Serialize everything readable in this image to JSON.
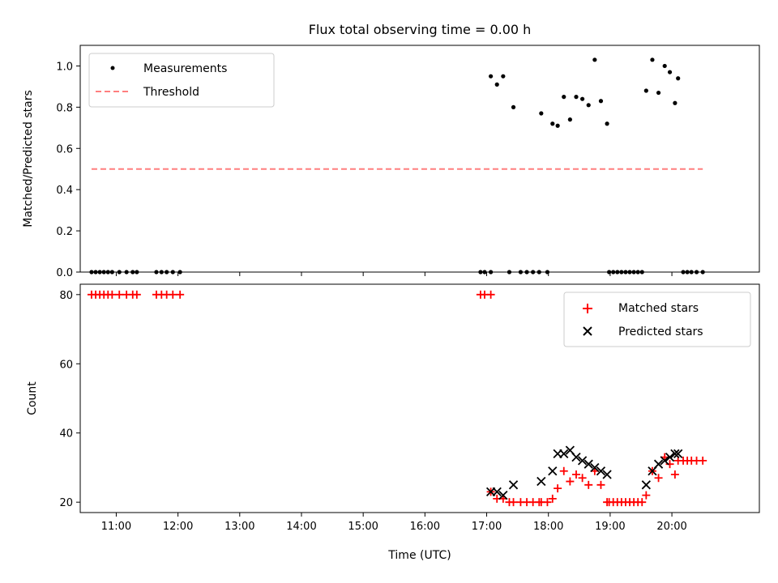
{
  "chart_data": [
    {
      "type": "scatter",
      "title": "Flux total observing time = 0.00 h",
      "xlabel": "",
      "ylabel": "Matched/Predicted stars",
      "xlim": [
        "10:25",
        "21:25"
      ],
      "ylim": [
        0,
        1.1
      ],
      "yticks": [
        0.0,
        0.2,
        0.4,
        0.6,
        0.8,
        1.0
      ],
      "ytick_labels": [
        "0.0",
        "0.2",
        "0.4",
        "0.6",
        "0.8",
        "1.0"
      ],
      "xticks": [
        "11:00",
        "12:00",
        "13:00",
        "14:00",
        "15:00",
        "16:00",
        "17:00",
        "18:00",
        "19:00",
        "20:00"
      ],
      "xtick_labels_shown": false,
      "legend_position": "upper left",
      "series": [
        {
          "name": "Measurements",
          "kind": "points",
          "color": "#000000",
          "points": [
            [
              "10:36",
              0
            ],
            [
              "10:40",
              0
            ],
            [
              "10:44",
              0
            ],
            [
              "10:48",
              0
            ],
            [
              "10:52",
              0
            ],
            [
              "10:56",
              0
            ],
            [
              "11:03",
              0
            ],
            [
              "11:10",
              0
            ],
            [
              "11:16",
              0
            ],
            [
              "11:20",
              0
            ],
            [
              "11:39",
              0
            ],
            [
              "11:44",
              0
            ],
            [
              "11:49",
              0
            ],
            [
              "11:55",
              0
            ],
            [
              "12:02",
              0
            ],
            [
              "16:54",
              0
            ],
            [
              "16:58",
              0
            ],
            [
              "17:04",
              0
            ],
            [
              "17:04",
              0.95
            ],
            [
              "17:10",
              0.91
            ],
            [
              "17:16",
              0.95
            ],
            [
              "17:26",
              0.8
            ],
            [
              "17:22",
              0
            ],
            [
              "17:33",
              0
            ],
            [
              "17:39",
              0
            ],
            [
              "17:45",
              0
            ],
            [
              "17:51",
              0
            ],
            [
              "17:59",
              0
            ],
            [
              "17:53",
              0.77
            ],
            [
              "18:04",
              0.72
            ],
            [
              "18:09",
              0.71
            ],
            [
              "18:15",
              0.85
            ],
            [
              "18:21",
              0.74
            ],
            [
              "18:27",
              0.85
            ],
            [
              "18:33",
              0.84
            ],
            [
              "18:39",
              0.81
            ],
            [
              "18:45",
              1.03
            ],
            [
              "18:51",
              0.83
            ],
            [
              "18:57",
              0.72
            ],
            [
              "18:59",
              0
            ],
            [
              "19:03",
              0
            ],
            [
              "19:07",
              0
            ],
            [
              "19:11",
              0
            ],
            [
              "19:15",
              0
            ],
            [
              "19:19",
              0
            ],
            [
              "19:23",
              0
            ],
            [
              "19:27",
              0
            ],
            [
              "19:31",
              0
            ],
            [
              "19:35",
              0.88
            ],
            [
              "19:41",
              1.03
            ],
            [
              "19:47",
              0.87
            ],
            [
              "19:53",
              1.0
            ],
            [
              "19:58",
              0.97
            ],
            [
              "20:03",
              0.82
            ],
            [
              "20:06",
              0.94
            ],
            [
              "20:11",
              0
            ],
            [
              "20:15",
              0
            ],
            [
              "20:19",
              0
            ],
            [
              "20:24",
              0
            ],
            [
              "20:30",
              0
            ]
          ]
        },
        {
          "name": "Threshold",
          "kind": "dashed-line",
          "color": "#ff7f7f",
          "points": [
            [
              "10:36",
              0.5
            ],
            [
              "20:30",
              0.5
            ]
          ]
        }
      ]
    },
    {
      "type": "scatter",
      "title": "",
      "xlabel": "Time (UTC)",
      "ylabel": "Count",
      "xlim": [
        "10:25",
        "21:25"
      ],
      "ylim": [
        17,
        83
      ],
      "yticks": [
        20,
        40,
        60,
        80
      ],
      "ytick_labels": [
        "20",
        "40",
        "60",
        "80"
      ],
      "xticks": [
        "11:00",
        "12:00",
        "13:00",
        "14:00",
        "15:00",
        "16:00",
        "17:00",
        "18:00",
        "19:00",
        "20:00"
      ],
      "xtick_labels": [
        "11:00",
        "12:00",
        "13:00",
        "14:00",
        "15:00",
        "16:00",
        "17:00",
        "18:00",
        "19:00",
        "20:00"
      ],
      "legend_position": "upper right",
      "series": [
        {
          "name": "Matched stars",
          "kind": "plus-markers",
          "color": "#ff0000",
          "points": [
            [
              "10:36",
              80
            ],
            [
              "10:40",
              80
            ],
            [
              "10:44",
              80
            ],
            [
              "10:48",
              80
            ],
            [
              "10:52",
              80
            ],
            [
              "10:56",
              80
            ],
            [
              "11:03",
              80
            ],
            [
              "11:10",
              80
            ],
            [
              "11:16",
              80
            ],
            [
              "11:20",
              80
            ],
            [
              "11:39",
              80
            ],
            [
              "11:44",
              80
            ],
            [
              "11:49",
              80
            ],
            [
              "11:55",
              80
            ],
            [
              "12:02",
              80
            ],
            [
              "16:54",
              80
            ],
            [
              "16:58",
              80
            ],
            [
              "17:04",
              80
            ],
            [
              "17:04",
              23
            ],
            [
              "17:10",
              21
            ],
            [
              "17:16",
              21
            ],
            [
              "17:22",
              20
            ],
            [
              "17:26",
              20
            ],
            [
              "17:33",
              20
            ],
            [
              "17:39",
              20
            ],
            [
              "17:45",
              20
            ],
            [
              "17:51",
              20
            ],
            [
              "17:53",
              20
            ],
            [
              "17:59",
              20
            ],
            [
              "18:04",
              21
            ],
            [
              "18:09",
              24
            ],
            [
              "18:15",
              29
            ],
            [
              "18:21",
              26
            ],
            [
              "18:27",
              28
            ],
            [
              "18:33",
              27
            ],
            [
              "18:39",
              25
            ],
            [
              "18:45",
              29
            ],
            [
              "18:51",
              25
            ],
            [
              "18:57",
              20
            ],
            [
              "18:59",
              20
            ],
            [
              "19:03",
              20
            ],
            [
              "19:07",
              20
            ],
            [
              "19:11",
              20
            ],
            [
              "19:15",
              20
            ],
            [
              "19:19",
              20
            ],
            [
              "19:23",
              20
            ],
            [
              "19:27",
              20
            ],
            [
              "19:31",
              20
            ],
            [
              "19:35",
              22
            ],
            [
              "19:41",
              29
            ],
            [
              "19:47",
              27
            ],
            [
              "19:53",
              33
            ],
            [
              "19:58",
              31
            ],
            [
              "20:03",
              28
            ],
            [
              "20:06",
              32
            ],
            [
              "20:11",
              32
            ],
            [
              "20:15",
              32
            ],
            [
              "20:19",
              32
            ],
            [
              "20:24",
              32
            ],
            [
              "20:30",
              32
            ]
          ]
        },
        {
          "name": "Predicted stars",
          "kind": "x-markers",
          "color": "#000000",
          "points": [
            [
              "17:04",
              23
            ],
            [
              "17:10",
              23
            ],
            [
              "17:16",
              22
            ],
            [
              "17:26",
              25
            ],
            [
              "17:53",
              26
            ],
            [
              "18:04",
              29
            ],
            [
              "18:09",
              34
            ],
            [
              "18:15",
              34
            ],
            [
              "18:21",
              35
            ],
            [
              "18:27",
              33
            ],
            [
              "18:33",
              32
            ],
            [
              "18:39",
              31
            ],
            [
              "18:45",
              30
            ],
            [
              "18:51",
              29
            ],
            [
              "18:57",
              28
            ],
            [
              "19:35",
              25
            ],
            [
              "19:41",
              29
            ],
            [
              "19:47",
              31
            ],
            [
              "19:53",
              32
            ],
            [
              "19:58",
              33
            ],
            [
              "20:03",
              34
            ],
            [
              "20:06",
              34
            ]
          ]
        }
      ]
    }
  ]
}
